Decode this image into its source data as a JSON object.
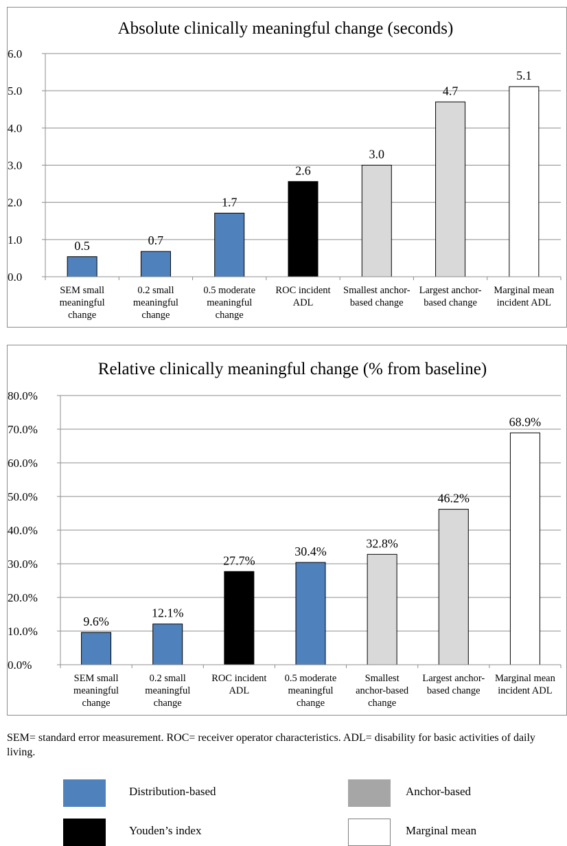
{
  "chart_data": [
    {
      "type": "bar",
      "title": "Absolute clinically meaningful change (seconds)",
      "xlabel": "",
      "ylabel": "",
      "ylim": [
        0,
        6
      ],
      "yticks": [
        "0.0",
        "1.0",
        "2.0",
        "3.0",
        "4.0",
        "5.0",
        "6.0"
      ],
      "grid": true,
      "categories": [
        [
          "SEM small",
          "meaningful",
          "change"
        ],
        [
          "0.2 small",
          "meaningful",
          "change"
        ],
        [
          "0.5 moderate",
          "meaningful",
          "change"
        ],
        [
          "ROC incident",
          "ADL"
        ],
        [
          "Smallest anchor-",
          "based change"
        ],
        [
          "Largest anchor-",
          "based change"
        ],
        [
          "Marginal mean",
          "incident ADL"
        ]
      ],
      "values": [
        0.54,
        0.68,
        1.71,
        2.56,
        3.0,
        4.7,
        5.11
      ],
      "value_labels": [
        "0.5",
        "0.7",
        "1.7",
        "2.6",
        "3.0",
        "4.7",
        "5.1"
      ],
      "bar_groups": [
        "Distribution-based",
        "Distribution-based",
        "Distribution-based",
        "Youden's index",
        "Anchor-based",
        "Anchor-based",
        "Marginal mean"
      ]
    },
    {
      "type": "bar",
      "title": "Relative clinically meaningful change (% from baseline)",
      "xlabel": "",
      "ylabel": "",
      "ylim": [
        0,
        80
      ],
      "yticks": [
        "0.0%",
        "10.0%",
        "20.0%",
        "30.0%",
        "40.0%",
        "50.0%",
        "60.0%",
        "70.0%",
        "80.0%"
      ],
      "grid": true,
      "categories": [
        [
          "SEM small",
          "meaningful",
          "change"
        ],
        [
          "0.2 small",
          "meaningful",
          "change"
        ],
        [
          "ROC incident",
          "ADL"
        ],
        [
          "0.5 moderate",
          "meaningful",
          "change"
        ],
        [
          "Smallest",
          "anchor-based",
          "change"
        ],
        [
          "Largest anchor-",
          "based change"
        ],
        [
          "Marginal mean",
          "incident  ADL"
        ]
      ],
      "values": [
        9.6,
        12.1,
        27.7,
        30.4,
        32.8,
        46.2,
        68.9
      ],
      "value_labels": [
        "9.6%",
        "12.1%",
        "27.7%",
        "30.4%",
        "32.8%",
        "46.2%",
        "68.9%"
      ],
      "bar_groups": [
        "Distribution-based",
        "Distribution-based",
        "Youden's index",
        "Distribution-based",
        "Anchor-based",
        "Anchor-based",
        "Marginal mean"
      ]
    }
  ],
  "note": "SEM= standard error measurement. ROC= receiver operator characteristics. ADL= disability for basic activities of daily living.",
  "legend": [
    {
      "label": "Distribution-based",
      "color": "#4f81bd"
    },
    {
      "label": "Anchor-based",
      "color": "#a6a6a6"
    },
    {
      "label": "Youden’s index",
      "color": "#000000"
    },
    {
      "label": "Marginal mean",
      "color": "#ffffff"
    }
  ],
  "colors": {
    "Distribution-based": "#4f81bd",
    "Anchor-based": "#d9d9d9",
    "Youden's index": "#000000",
    "Marginal mean": "#ffffff",
    "axis": "#8c8c8c"
  }
}
